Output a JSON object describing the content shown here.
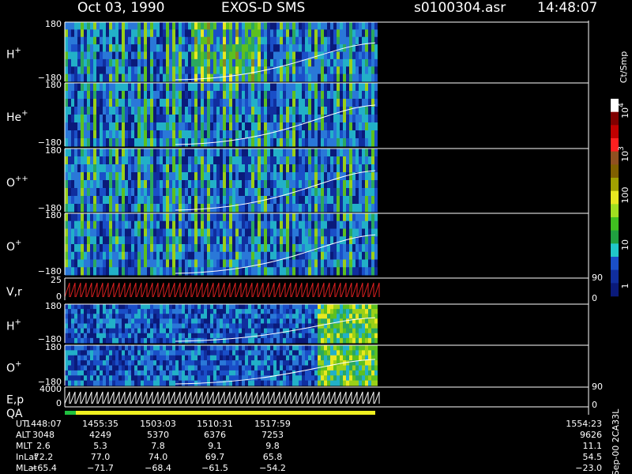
{
  "header": {
    "date": "Oct 03, 1990",
    "instrument": "EXOS-D SMS",
    "file": "s0100304.asr",
    "time": "14:48:07"
  },
  "panels": [
    {
      "label": "H",
      "sup": "+",
      "top": "180",
      "bottom": "−180"
    },
    {
      "label": "He",
      "sup": "+",
      "top": "180",
      "bottom": "−180"
    },
    {
      "label": "O",
      "sup": "++",
      "top": "180",
      "bottom": "−180"
    },
    {
      "label": "O",
      "sup": "+",
      "top": "180",
      "bottom": "−180"
    },
    {
      "label": "V,r",
      "top": "25",
      "bottom": "0",
      "right_top": "90",
      "right_bottom": "0"
    },
    {
      "label": "H",
      "sup": "+",
      "top": "180",
      "bottom": "−180"
    },
    {
      "label": "O",
      "sup": "+",
      "top": "180",
      "bottom": "−180"
    },
    {
      "label": "E,p",
      "top": "4000",
      "bottom": "0",
      "right_top": "90",
      "right_bottom": "0"
    },
    {
      "label": "QA"
    }
  ],
  "colorbar": {
    "unit": "Ct/Smp",
    "labels": [
      {
        "text": "10",
        "sup": "4"
      },
      {
        "text": "10",
        "sup": "3"
      },
      {
        "text": "100"
      },
      {
        "text": "10"
      },
      {
        "text": "1"
      }
    ]
  },
  "table": {
    "rows": [
      {
        "label": "UT",
        "values": [
          "1448:07",
          "1455:35",
          "1503:03",
          "1510:31",
          "1517:59",
          "1554:23"
        ]
      },
      {
        "label": "ALT",
        "values": [
          "3048",
          "4249",
          "5370",
          "6376",
          "7253",
          "9626"
        ]
      },
      {
        "label": "MLT",
        "values": [
          "2.6",
          "5.3",
          "7.8",
          "9.1",
          "9.8",
          "11.1"
        ]
      },
      {
        "label": "InLat",
        "values": [
          "72.2",
          "77.0",
          "74.0",
          "69.7",
          "65.8",
          "54.5"
        ]
      },
      {
        "label": "MLat",
        "values": [
          "−65.4",
          "−71.7",
          "−68.4",
          "−61.5",
          "−54.2",
          "−23.0"
        ]
      }
    ]
  },
  "footer_id": "Sep-00 2CA33L"
}
